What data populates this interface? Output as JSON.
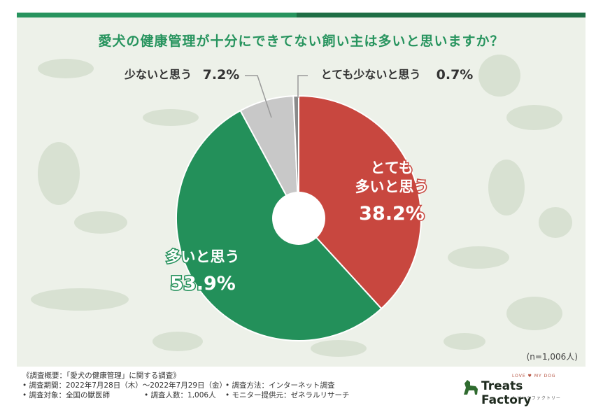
{
  "colors": {
    "title": "#27945e",
    "top_bar_green": "#27945e",
    "top_bar_dark": "#1e6e45",
    "background": "#edf1e9",
    "silhouette": "#d8e1d2"
  },
  "chart_data": {
    "type": "pie",
    "title": "愛犬の健康管理が十分にできてない飼い主は多いと思いますか？",
    "note": "(n=1,006人)",
    "slices": [
      {
        "label_lines": [
          "とても",
          "多いと思う"
        ],
        "value": 38.2,
        "value_text": "38.2%",
        "color": "#c8473f",
        "label_color": "#ffffff"
      },
      {
        "label_lines": [
          "多いと思う"
        ],
        "value": 53.9,
        "value_text": "53.9%",
        "color": "#23905a",
        "label_color": "#ffffff"
      },
      {
        "label_lines": [
          "少ないと思う"
        ],
        "value": 7.2,
        "value_text": "7.2%",
        "color": "#c8c8c8",
        "label_color": "#333333"
      },
      {
        "label_lines": [
          "とても少ないと思う"
        ],
        "value": 0.7,
        "value_text": "0.7%",
        "color": "#8a8a8a",
        "label_color": "#333333"
      }
    ]
  },
  "footer": {
    "line1": "《調査概要：「愛犬の健康管理」に関する調査》",
    "period": "• 調査期間：2022年7月28日（木）～2022年7月29日（金）",
    "method": "• 調査方法：インターネット調査",
    "target": "• 調査対象：全国の獣医師",
    "count": "• 調査人数：1,006人",
    "provider": "• モニター提供元：ゼネラルリサーチ"
  },
  "logo": {
    "tagline": "LOVE ♥ MY DOG",
    "name": "Treats Factory",
    "subname": "トリーツファクトリー"
  }
}
